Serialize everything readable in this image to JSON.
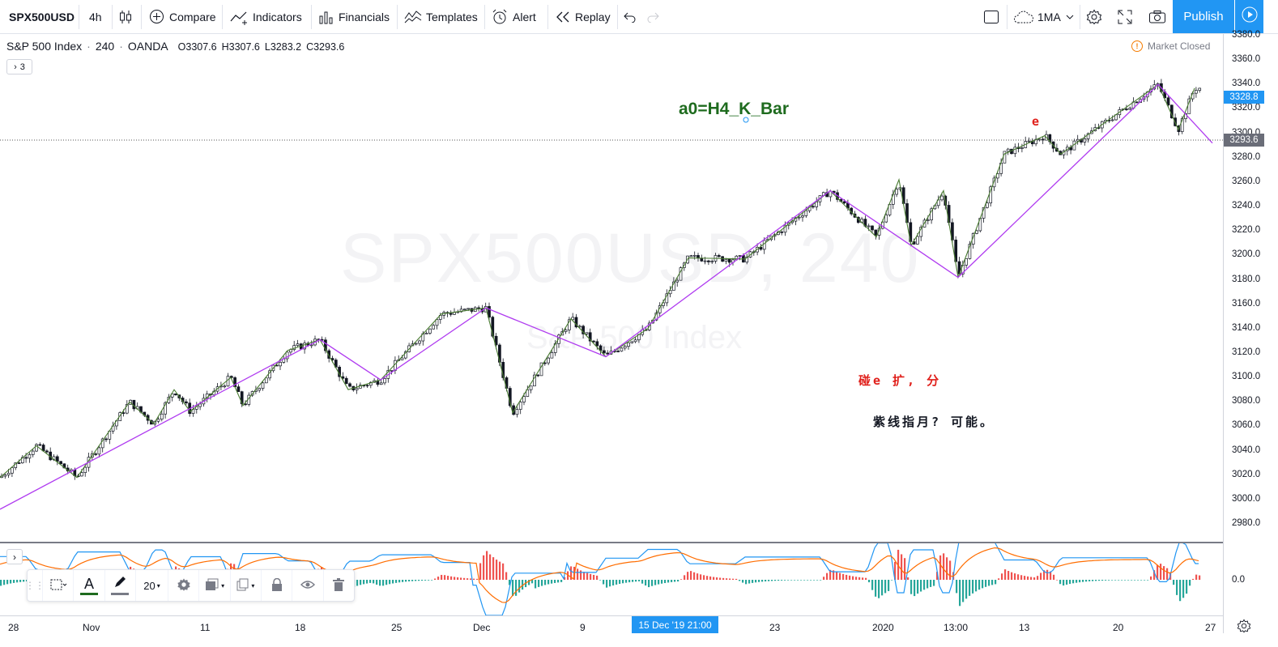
{
  "toolbar": {
    "symbol": "SPX500USD",
    "interval": "4h",
    "compare": "Compare",
    "indicators": "Indicators",
    "financials": "Financials",
    "templates": "Templates",
    "alert": "Alert",
    "replay": "Replay",
    "layout_name": "1MA",
    "publish": "Publish"
  },
  "legend": {
    "name": "S&P 500 Index",
    "interval": "240",
    "source": "OANDA",
    "open": "O3307.6",
    "high": "H3307.6",
    "low": "L3283.2",
    "close": "C3293.6",
    "indicator_count": "3"
  },
  "market_status": "Market Closed",
  "annotations": {
    "formula": "a0=H4_K_Bar",
    "label_e": "e",
    "note_red": "碰e 扩, 分",
    "note_black": "紫线指月? 可能。"
  },
  "watermark": {
    "symbol": "SPX500USD, 240",
    "name": "S&P 500 Index"
  },
  "price_scale": {
    "labels": [
      "3380.0",
      "3360.0",
      "3340.0",
      "3320.0",
      "3300.0",
      "3280.0",
      "3260.0",
      "3240.0",
      "3220.0",
      "3200.0",
      "3180.0",
      "3160.0",
      "3140.0",
      "3120.0",
      "3100.0",
      "3080.0",
      "3060.0",
      "3040.0",
      "3020.0",
      "3000.0",
      "2980.0"
    ],
    "current_price": "3293.6",
    "crosshair_price": "3328.8",
    "indicator_zero": "0.0"
  },
  "time_axis": {
    "labels": [
      "28",
      "Nov",
      "11",
      "18",
      "25",
      "Dec",
      "9",
      "23",
      "2020",
      "13:00",
      "13",
      "20",
      "27"
    ],
    "crosshair_time": "15 Dec '19  21:00"
  },
  "drawing_toolbar": {
    "line_width": "20"
  },
  "colors": {
    "accent": "#2196f3",
    "purple_line": "#b03cf0",
    "green_line": "#4a7c32",
    "note_red": "#e0201b",
    "formula_green": "#1e6b1e",
    "macd_blue": "#2196f3",
    "macd_orange": "#ff6d00",
    "hist_pos": "#26a69a",
    "hist_neg": "#ef5350"
  },
  "chart_data": {
    "type": "candlestick",
    "zigzag_purple": [
      [
        0,
        2992
      ],
      [
        395,
        3131
      ],
      [
        470,
        3098
      ],
      [
        600,
        3157
      ],
      [
        748,
        3117
      ],
      [
        1025,
        3253
      ],
      [
        1183,
        3182
      ],
      [
        1430,
        3340
      ],
      [
        1497,
        3292
      ]
    ],
    "zigzag_green": [
      [
        0,
        3018
      ],
      [
        45,
        3044
      ],
      [
        95,
        3018
      ],
      [
        160,
        3080
      ],
      [
        190,
        3062
      ],
      [
        215,
        3090
      ],
      [
        235,
        3072
      ],
      [
        285,
        3100
      ],
      [
        300,
        3077
      ],
      [
        355,
        3122
      ],
      [
        395,
        3131
      ],
      [
        430,
        3090
      ],
      [
        470,
        3098
      ],
      [
        545,
        3152
      ],
      [
        600,
        3157
      ],
      [
        633,
        3071
      ],
      [
        705,
        3148
      ],
      [
        748,
        3117
      ],
      [
        800,
        3140
      ],
      [
        850,
        3198
      ],
      [
        920,
        3197
      ],
      [
        1025,
        3253
      ],
      [
        1082,
        3215
      ],
      [
        1110,
        3262
      ],
      [
        1125,
        3208
      ],
      [
        1165,
        3253
      ],
      [
        1183,
        3182
      ],
      [
        1240,
        3283
      ],
      [
        1290,
        3298
      ],
      [
        1310,
        3283
      ],
      [
        1430,
        3340
      ],
      [
        1455,
        3303
      ],
      [
        1475,
        3337
      ]
    ]
  }
}
